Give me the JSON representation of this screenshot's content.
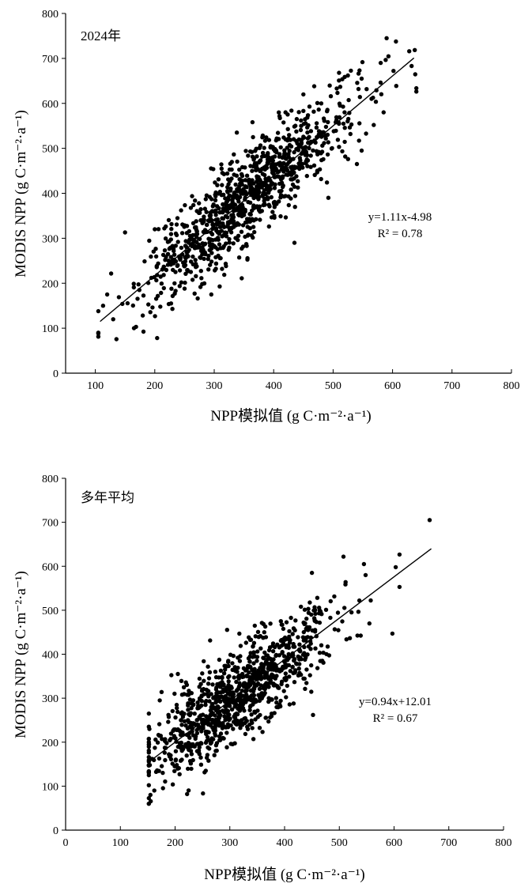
{
  "chart_data": [
    {
      "type": "scatter",
      "panel_label": "2024年",
      "xlabel": "NPP模拟值 (g C·m⁻²·a⁻¹)",
      "ylabel": "MODIS NPP (g C·m⁻²·a⁻¹)",
      "xlim": [
        50,
        800
      ],
      "ylim": [
        0,
        800
      ],
      "xticks": [
        "100",
        "200",
        "300",
        "400",
        "500",
        "600",
        "700",
        "800"
      ],
      "yticks": [
        "0",
        "100",
        "200",
        "300",
        "400",
        "500",
        "600",
        "700",
        "800"
      ],
      "fit": {
        "slope": 1.11,
        "intercept": -4.98,
        "x_range": [
          108,
          636
        ]
      },
      "equation": "y=1.11x-4.98",
      "r2": "R² = 0.78",
      "grid": false,
      "marker_color": "#000000",
      "point_cloud": {
        "count": 1000,
        "x_mean": 360,
        "x_sd": 90,
        "x_min": 105,
        "x_max": 640,
        "resid_sd": 52,
        "seed": 7
      },
      "points": [
        [
          105,
          90
        ],
        [
          204,
          78
        ],
        [
          150,
          313
        ],
        [
          590,
          745
        ],
        [
          628,
          716
        ],
        [
          632,
          683
        ],
        [
          540,
          465
        ],
        [
          492,
          390
        ],
        [
          450,
          620
        ],
        [
          480,
          600
        ],
        [
          510,
          668
        ],
        [
          113,
          150
        ],
        [
          120,
          175
        ],
        [
          130,
          120
        ],
        [
          165,
          100
        ],
        [
          200,
          320
        ],
        [
          435,
          290
        ],
        [
          580,
          690
        ],
        [
          548,
          655
        ],
        [
          585,
          580
        ],
        [
          548,
          495
        ],
        [
          338,
          535
        ],
        [
          420,
          580
        ]
      ]
    },
    {
      "type": "scatter",
      "panel_label": "多年平均",
      "xlabel": "NPP模拟值 (g C·m⁻²·a⁻¹)",
      "ylabel": "MODIS NPP (g C·m⁻²·a⁻¹)",
      "xlim": [
        0,
        800
      ],
      "ylim": [
        0,
        800
      ],
      "xticks": [
        "0",
        "100",
        "200",
        "300",
        "400",
        "500",
        "600",
        "700",
        "800"
      ],
      "yticks": [
        "0",
        "100",
        "200",
        "300",
        "400",
        "500",
        "600",
        "700",
        "800"
      ],
      "fit": {
        "slope": 0.94,
        "intercept": 12.01,
        "x_range": [
          155,
          668
        ]
      },
      "equation": "y=0.94x+12.01",
      "r2": "R² = 0.67",
      "grid": false,
      "marker_color": "#000000",
      "point_cloud": {
        "count": 1000,
        "x_mean": 320,
        "x_sd": 85,
        "x_min": 152,
        "x_max": 610,
        "resid_sd": 50,
        "seed": 13
      },
      "points": [
        [
          665,
          705
        ],
        [
          597,
          447
        ],
        [
          452,
          262
        ],
        [
          610,
          553
        ],
        [
          603,
          598
        ],
        [
          545,
          605
        ],
        [
          548,
          580
        ],
        [
          222,
          82
        ],
        [
          155,
          80
        ],
        [
          162,
          90
        ],
        [
          153,
          230
        ],
        [
          172,
          295
        ],
        [
          205,
          355
        ],
        [
          555,
          470
        ],
        [
          450,
          585
        ]
      ]
    }
  ]
}
